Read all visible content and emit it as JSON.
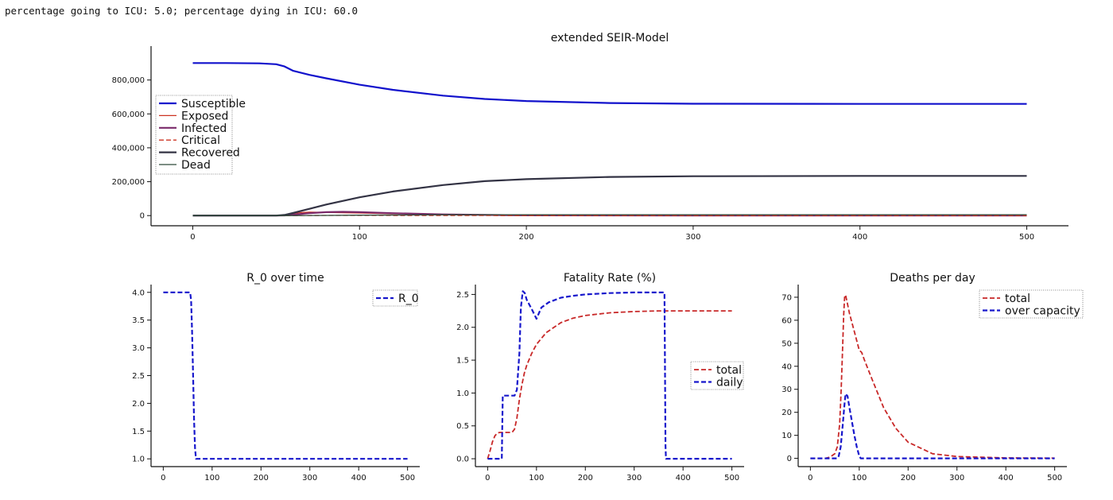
{
  "caption": "percentage going to ICU: 5.0; percentage dying in ICU: 60.0",
  "colors": {
    "susceptible": "#1111cc",
    "exposed": "#cc3322",
    "infected": "#7a2a6a",
    "critical": "#cc3322",
    "recovered": "#333344",
    "dead": "#2e4a3a",
    "red_dash": "#c82828",
    "blue_dash": "#1818cc"
  },
  "chart_data": [
    {
      "id": "seir",
      "type": "line",
      "title": "extended SEIR-Model",
      "xlim": [
        -25,
        525
      ],
      "ylim": [
        -60000,
        1000000
      ],
      "xticks": [
        0,
        100,
        200,
        300,
        400,
        500
      ],
      "xticklabels": [
        "0",
        "100",
        "200",
        "300",
        "400",
        "500"
      ],
      "yticks": [
        0,
        200000,
        400000,
        600000,
        800000
      ],
      "yticklabels": [
        "0",
        "200,000",
        "400,000",
        "600,000",
        "800,000"
      ],
      "legend_position": "center-left",
      "series": [
        {
          "name": "Susceptible",
          "style": "solid",
          "width": 2.2,
          "color_key": "susceptible",
          "x": [
            0,
            20,
            40,
            50,
            55,
            60,
            70,
            80,
            100,
            120,
            150,
            175,
            200,
            250,
            300,
            400,
            500
          ],
          "y": [
            900000,
            900000,
            898000,
            893000,
            880000,
            855000,
            830000,
            810000,
            772000,
            742000,
            708000,
            688000,
            676000,
            664000,
            660000,
            659000,
            659000
          ]
        },
        {
          "name": "Exposed",
          "style": "solid",
          "width": 1.3,
          "color_key": "exposed",
          "x": [
            0,
            50,
            55,
            60,
            65,
            70,
            80,
            100,
            120,
            150,
            200,
            300,
            500
          ],
          "y": [
            0,
            0,
            3000,
            12000,
            18000,
            20000,
            19000,
            15000,
            11000,
            6000,
            2000,
            0,
            0
          ]
        },
        {
          "name": "Infected",
          "style": "solid",
          "width": 2.2,
          "color_key": "infected",
          "x": [
            0,
            50,
            55,
            60,
            70,
            80,
            90,
            100,
            120,
            150,
            200,
            300,
            500
          ],
          "y": [
            0,
            0,
            1000,
            5000,
            14000,
            20000,
            22000,
            20000,
            14000,
            7000,
            1500,
            0,
            0
          ]
        },
        {
          "name": "Critical",
          "style": "dashed",
          "width": 1.3,
          "color_key": "critical",
          "x": [
            0,
            60,
            80,
            100,
            150,
            200,
            500
          ],
          "y": [
            0,
            200,
            800,
            1000,
            500,
            100,
            0
          ]
        },
        {
          "name": "Recovered",
          "style": "solid",
          "width": 2.2,
          "color_key": "recovered",
          "x": [
            0,
            50,
            55,
            60,
            70,
            80,
            100,
            120,
            150,
            175,
            200,
            250,
            300,
            400,
            500
          ],
          "y": [
            0,
            0,
            4000,
            15000,
            40000,
            65000,
            108000,
            142000,
            180000,
            203000,
            215000,
            228000,
            232000,
            234000,
            234000
          ]
        },
        {
          "name": "Dead",
          "style": "solid",
          "width": 1.3,
          "color_key": "dead",
          "x": [
            0,
            60,
            80,
            100,
            150,
            200,
            300,
            500
          ],
          "y": [
            0,
            200,
            1200,
            2500,
            4500,
            5000,
            5200,
            5200
          ]
        }
      ]
    },
    {
      "id": "r0",
      "type": "line",
      "title": "R_0 over time",
      "xlim": [
        -25,
        525
      ],
      "ylim": [
        0.86,
        4.14
      ],
      "xticks": [
        0,
        100,
        200,
        300,
        400,
        500
      ],
      "xticklabels": [
        "0",
        "100",
        "200",
        "300",
        "400",
        "500"
      ],
      "yticks": [
        1.0,
        1.5,
        2.0,
        2.5,
        3.0,
        3.5,
        4.0
      ],
      "yticklabels": [
        "1.0",
        "1.5",
        "2.0",
        "2.5",
        "3.0",
        "3.5",
        "4.0"
      ],
      "legend_position": "top-right",
      "series": [
        {
          "name": "R_0",
          "style": "dashed",
          "width": 2.2,
          "color_key": "blue_dash",
          "x": [
            0,
            55,
            57,
            59,
            61,
            63,
            65,
            67,
            500
          ],
          "y": [
            4.0,
            4.0,
            3.85,
            3.3,
            2.5,
            1.7,
            1.2,
            1.0,
            1.0
          ]
        }
      ]
    },
    {
      "id": "fatality",
      "type": "line",
      "title": "Fatality Rate (%)",
      "xlim": [
        -25,
        525
      ],
      "ylim": [
        -0.12,
        2.65
      ],
      "xticks": [
        0,
        100,
        200,
        300,
        400,
        500
      ],
      "xticklabels": [
        "0",
        "100",
        "200",
        "300",
        "400",
        "500"
      ],
      "yticks": [
        0.0,
        0.5,
        1.0,
        1.5,
        2.0,
        2.5
      ],
      "yticklabels": [
        "0.0",
        "0.5",
        "1.0",
        "1.5",
        "2.0",
        "2.5"
      ],
      "legend_position": "center-right",
      "series": [
        {
          "name": "total",
          "style": "dashed",
          "width": 1.8,
          "color_key": "red_dash",
          "x": [
            0,
            5,
            10,
            15,
            20,
            25,
            30,
            40,
            50,
            55,
            60,
            65,
            70,
            75,
            80,
            90,
            100,
            120,
            150,
            175,
            200,
            250,
            300,
            350,
            400,
            500
          ],
          "y": [
            0.0,
            0.12,
            0.26,
            0.35,
            0.39,
            0.4,
            0.4,
            0.4,
            0.4,
            0.45,
            0.62,
            0.9,
            1.12,
            1.3,
            1.42,
            1.6,
            1.74,
            1.92,
            2.07,
            2.14,
            2.18,
            2.22,
            2.24,
            2.25,
            2.25,
            2.25
          ]
        },
        {
          "name": "daily",
          "style": "dashed",
          "width": 2.2,
          "color_key": "blue_dash",
          "x": [
            0,
            29,
            30,
            31,
            55,
            60,
            65,
            68,
            72,
            76,
            80,
            90,
            100,
            110,
            125,
            150,
            175,
            200,
            250,
            300,
            362,
            363,
            364,
            365,
            500
          ],
          "y": [
            0.0,
            0.0,
            0.5,
            0.96,
            0.96,
            1.05,
            1.6,
            2.3,
            2.55,
            2.52,
            2.42,
            2.28,
            2.13,
            2.3,
            2.38,
            2.45,
            2.48,
            2.5,
            2.52,
            2.53,
            2.53,
            1.5,
            0.2,
            0.0,
            0.0
          ]
        }
      ]
    },
    {
      "id": "deaths",
      "type": "line",
      "title": "Deaths per day",
      "xlim": [
        -25,
        525
      ],
      "ylim": [
        -3.6,
        75.5
      ],
      "xticks": [
        0,
        100,
        200,
        300,
        400,
        500
      ],
      "xticklabels": [
        "0",
        "100",
        "200",
        "300",
        "400",
        "500"
      ],
      "yticks": [
        0,
        10,
        20,
        30,
        40,
        50,
        60,
        70
      ],
      "yticklabels": [
        "0",
        "10",
        "20",
        "30",
        "40",
        "50",
        "60",
        "70"
      ],
      "legend_position": "top-right",
      "series": [
        {
          "name": "total",
          "style": "dashed",
          "width": 1.8,
          "color_key": "red_dash",
          "x": [
            0,
            30,
            40,
            50,
            55,
            60,
            63,
            66,
            68,
            70,
            72,
            75,
            80,
            90,
            100,
            105,
            110,
            125,
            150,
            175,
            200,
            250,
            300,
            400,
            500
          ],
          "y": [
            0,
            0,
            0.5,
            2,
            5,
            15,
            30,
            48,
            62,
            70,
            71,
            68,
            63,
            55,
            47,
            46,
            43,
            35,
            22,
            13,
            7,
            2,
            0.8,
            0.2,
            0.1
          ]
        },
        {
          "name": "over capacity",
          "style": "dashed",
          "width": 2.2,
          "color_key": "blue_dash",
          "x": [
            0,
            55,
            58,
            62,
            66,
            70,
            72,
            76,
            80,
            85,
            90,
            95,
            100,
            103,
            500
          ],
          "y": [
            0,
            0,
            1,
            5,
            14,
            24,
            28,
            27,
            22,
            16,
            10,
            5,
            1,
            0,
            0
          ]
        }
      ]
    }
  ]
}
